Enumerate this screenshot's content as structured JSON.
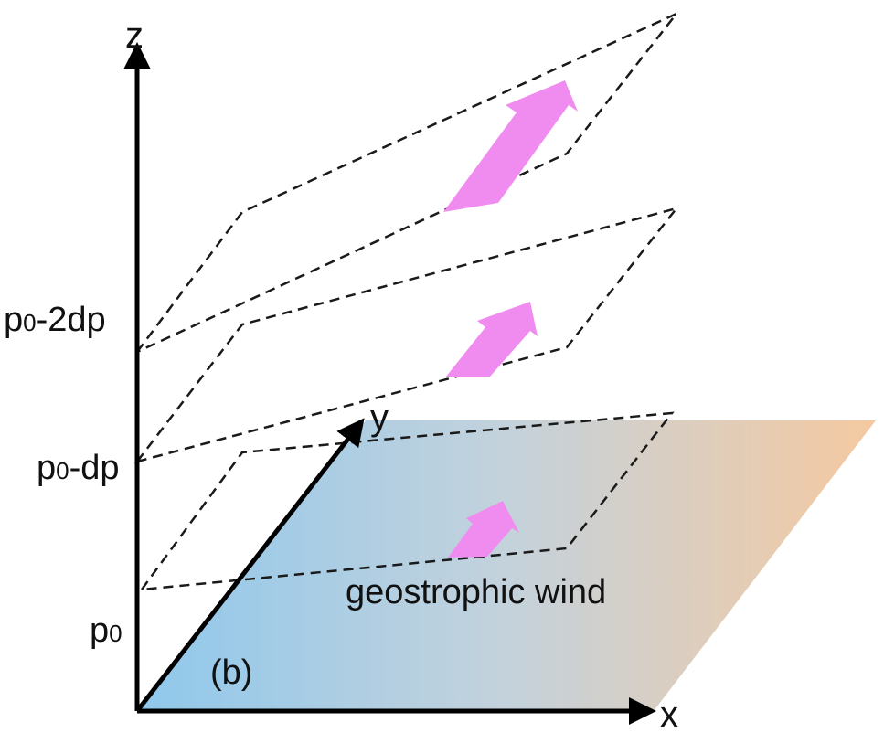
{
  "axes": {
    "x": "x",
    "y": "y",
    "z": "z"
  },
  "levels": [
    {
      "base": "p",
      "sub": "0",
      "suffix": ""
    },
    {
      "base": "p",
      "sub": "0",
      "suffix": "-dp"
    },
    {
      "base": "p",
      "sub": "0",
      "suffix": "-2dp"
    }
  ],
  "wind_label": "geostrophic wind",
  "panel_label": "(b)",
  "colors": {
    "plane_left": "#8fc8ec",
    "plane_right": "#f5c9a0",
    "arrow": "#f08cf0",
    "axis": "#000000",
    "dash": "#1a1a1a"
  }
}
